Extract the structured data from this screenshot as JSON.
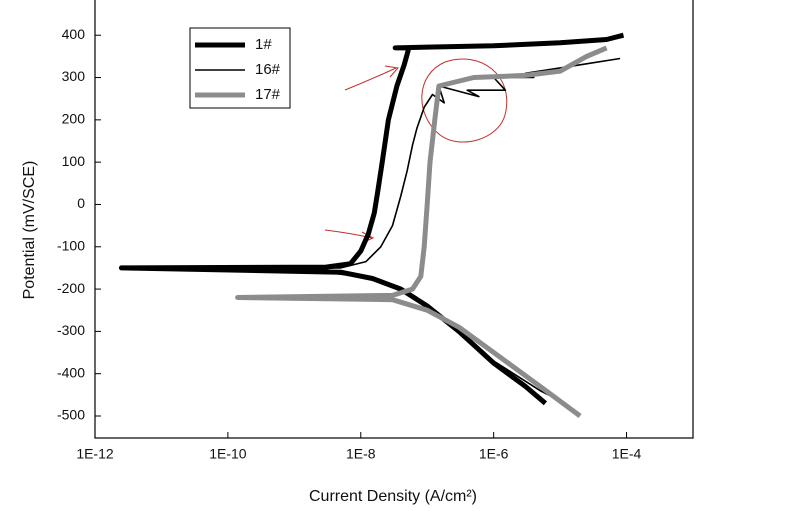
{
  "chart_data": {
    "type": "line",
    "xscale": "log",
    "xlabel": "Current Density (A/cm²)",
    "ylabel": "Potential (mV/SCE)",
    "xlim": [
      1e-12,
      0.001
    ],
    "ylim": [
      -552,
      488
    ],
    "xticks": [
      {
        "value": 1e-12,
        "label": "1E-12"
      },
      {
        "value": 1e-10,
        "label": "1E-10"
      },
      {
        "value": 1e-08,
        "label": "1E-8"
      },
      {
        "value": 1e-06,
        "label": "1E-6"
      },
      {
        "value": 0.0001,
        "label": "1E-4"
      }
    ],
    "yticks": [
      -500,
      -400,
      -300,
      -200,
      -100,
      0,
      100,
      200,
      300,
      400
    ],
    "legend": "upper-left",
    "series": [
      {
        "name": "1#",
        "color": "#000000",
        "line_width": 5,
        "x": [
          6e-06,
          3e-06,
          1e-06,
          3e-07,
          1e-07,
          4e-08,
          1.5e-08,
          5e-09,
          2.5e-12,
          3e-09,
          7e-09,
          1e-08,
          1.3e-08,
          1.6e-08,
          1.8e-08,
          2.1e-08,
          2.6e-08,
          3.5e-08,
          4.5e-08,
          5.3e-08,
          3.3e-08,
          1e-07,
          1e-06,
          1e-05,
          5e-05,
          9e-05
        ],
        "values": [
          -470,
          -430,
          -375,
          -300,
          -240,
          -200,
          -175,
          -160,
          -150,
          -148,
          -140,
          -110,
          -70,
          -20,
          30,
          100,
          200,
          280,
          330,
          370,
          370,
          372,
          375,
          382,
          390,
          400
        ]
      },
      {
        "name": "16#",
        "color": "#000000",
        "line_width": 1.6,
        "x": [
          1.2e-05,
          5e-06,
          1e-06,
          3e-07,
          1e-07,
          4e-08,
          1.5e-08,
          3e-09,
          4e-11,
          5e-09,
          1.2e-08,
          2e-08,
          3e-08,
          4e-08,
          5e-08,
          6e-08,
          7e-08,
          9e-08,
          1.2e-07,
          1.8e-07,
          1.5e-07,
          6e-07,
          4e-07,
          1.5e-06,
          1e-06,
          4e-06,
          3e-06,
          2e-05,
          8e-05
        ],
        "values": [
          -470,
          -440,
          -370,
          -300,
          -240,
          -200,
          -175,
          -160,
          -155,
          -150,
          -135,
          -100,
          -50,
          20,
          80,
          140,
          180,
          230,
          260,
          240,
          280,
          255,
          270,
          270,
          300,
          300,
          310,
          330,
          345
        ]
      },
      {
        "name": "17#",
        "color": "#8c8c8c",
        "line_width": 5,
        "x": [
          2e-05,
          5e-06,
          1e-06,
          3e-07,
          1e-07,
          3e-08,
          1.4e-10,
          3e-08,
          6e-08,
          8e-08,
          9e-08,
          1e-07,
          1.1e-07,
          1.3e-07,
          1.5e-07,
          5e-07,
          3e-06,
          1e-05,
          2.5e-05,
          5e-05
        ],
        "values": [
          -500,
          -430,
          -350,
          -290,
          -250,
          -225,
          -220,
          -215,
          -200,
          -170,
          -100,
          0,
          100,
          200,
          280,
          300,
          305,
          315,
          350,
          370
        ]
      }
    ]
  }
}
